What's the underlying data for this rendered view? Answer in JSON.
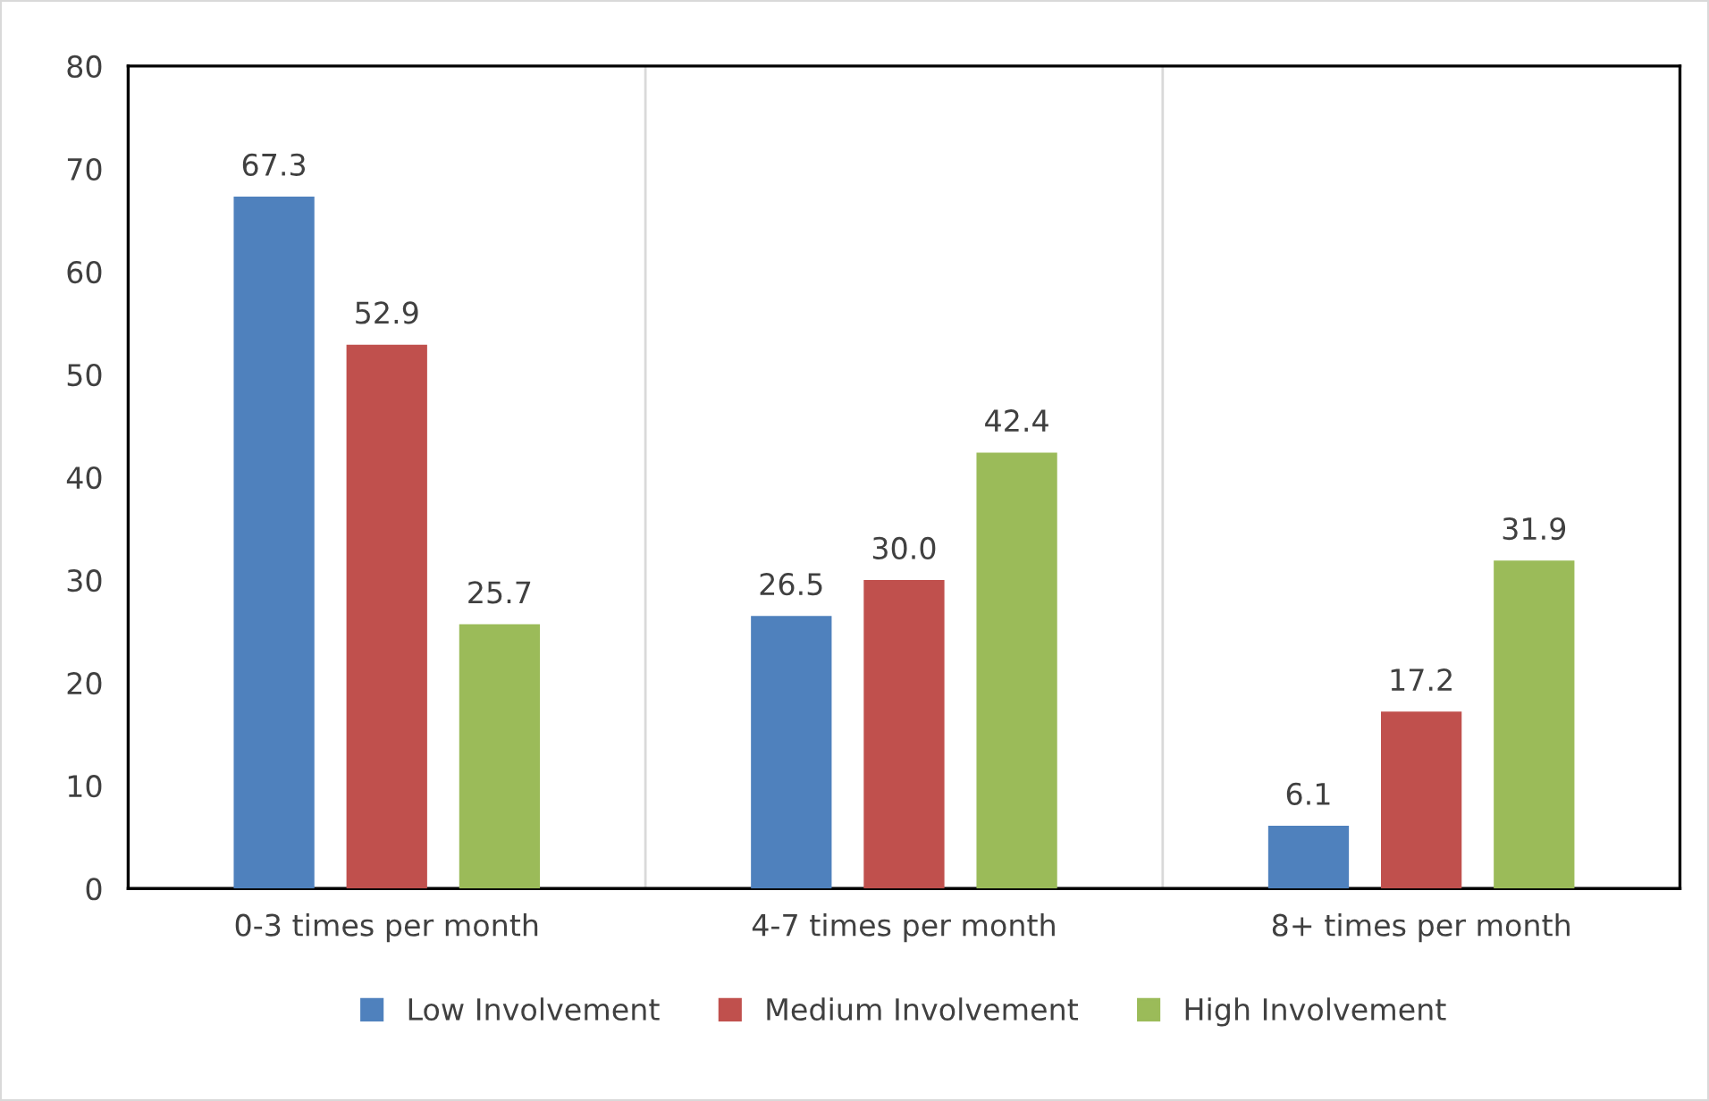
{
  "chart_data": {
    "type": "bar",
    "categories": [
      "0-3 times per month",
      "4-7 times per month",
      "8+ times per month"
    ],
    "series": [
      {
        "name": "Low Involvement",
        "color": "#4f81bd",
        "values": [
          67.3,
          26.5,
          6.1
        ]
      },
      {
        "name": "Medium Involvement",
        "color": "#c0504d",
        "values": [
          52.9,
          30.0,
          17.2
        ]
      },
      {
        "name": "High Involvement",
        "color": "#9bbb59",
        "values": [
          25.7,
          42.4,
          31.9
        ]
      }
    ],
    "value_labels": [
      [
        "67.3",
        "26.5",
        "6.1"
      ],
      [
        "52.9",
        "30.0",
        "17.2"
      ],
      [
        "25.7",
        "42.4",
        "31.9"
      ]
    ],
    "ylim": [
      0,
      80
    ],
    "yticks": [
      0,
      10,
      20,
      30,
      40,
      50,
      60,
      70,
      80
    ],
    "grid": "x",
    "legend": "bottom"
  }
}
